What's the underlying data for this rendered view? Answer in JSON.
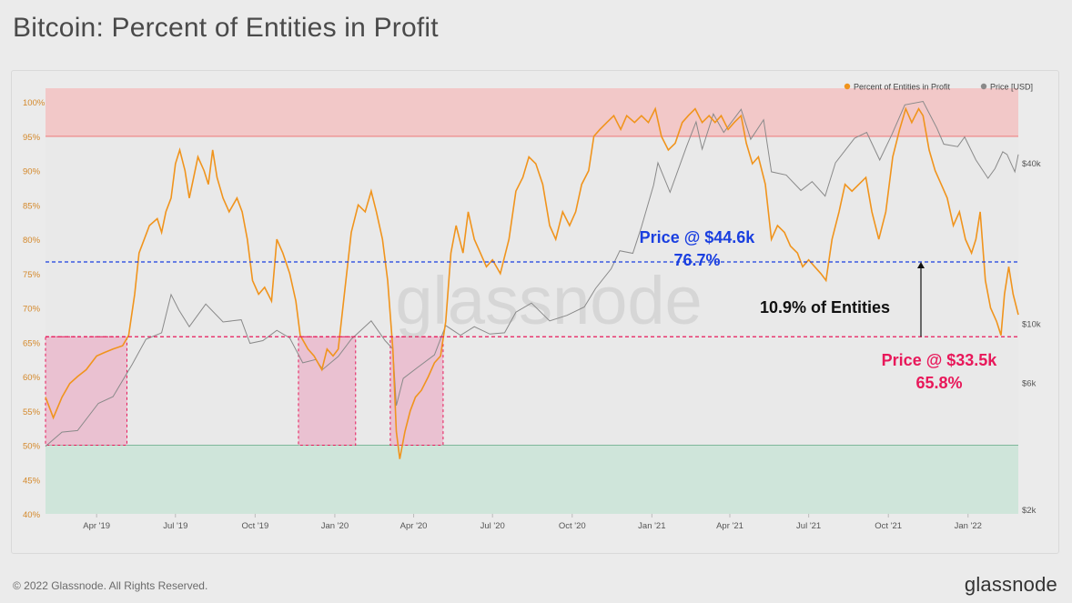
{
  "page": {
    "title": "Bitcoin: Percent of Entities in Profit",
    "copyright": "© 2022 Glassnode. All Rights Reserved.",
    "logo_text": "glassnode",
    "watermark": "glassnode"
  },
  "colors": {
    "profit_line": "#f0941d",
    "price_line": "#8a8a8a",
    "band_top": "#f2c8c8",
    "band_bottom": "#cfe5da",
    "blue": "#1a3fe0",
    "red": "#e8185a",
    "box_fill": "#eab3c8",
    "box_stroke": "#e8185a"
  },
  "chart_data": {
    "type": "line",
    "title": "Bitcoin: Percent of Entities in Profit",
    "left_axis": {
      "unit": "%",
      "range": [
        40,
        102
      ],
      "ticks": [
        "40%",
        "45%",
        "50%",
        "55%",
        "60%",
        "65%",
        "70%",
        "75%",
        "80%",
        "85%",
        "90%",
        "95%",
        "100%"
      ]
    },
    "right_axis": {
      "scale": "log",
      "label": "Price [USD]",
      "ticks": [
        {
          "label": "$2k",
          "value": 2000
        },
        {
          "label": "$6k",
          "value": 6000
        },
        {
          "label": "$10k",
          "value": 10000
        },
        {
          "label": "$40k",
          "value": 40000
        }
      ]
    },
    "x_range": [
      "2019-02-01",
      "2022-02-28"
    ],
    "x_ticks": [
      {
        "label": "Apr '19",
        "date": "2019-04-01"
      },
      {
        "label": "Jul '19",
        "date": "2019-07-01"
      },
      {
        "label": "Oct '19",
        "date": "2019-10-01"
      },
      {
        "label": "Jan '20",
        "date": "2020-01-01"
      },
      {
        "label": "Apr '20",
        "date": "2020-04-01"
      },
      {
        "label": "Jul '20",
        "date": "2020-07-01"
      },
      {
        "label": "Oct '20",
        "date": "2020-10-01"
      },
      {
        "label": "Jan '21",
        "date": "2021-01-01"
      },
      {
        "label": "Apr '21",
        "date": "2021-04-01"
      },
      {
        "label": "Jul '21",
        "date": "2021-07-01"
      },
      {
        "label": "Oct '21",
        "date": "2021-10-01"
      },
      {
        "label": "Jan '22",
        "date": "2022-01-01"
      }
    ],
    "bands": [
      {
        "name": "upper-band",
        "from": 95,
        "to": 102
      },
      {
        "name": "lower-band",
        "from": 40,
        "to": 50
      }
    ],
    "reference_lines": [
      {
        "name": "price-44.6k-line",
        "value": 76.7
      },
      {
        "name": "price-33.5k-line",
        "value": 65.8
      }
    ],
    "shaded_periods": [
      {
        "name": "period-2019-early",
        "start": "2019-02-01",
        "end": "2019-05-06",
        "top": 65.8
      },
      {
        "name": "period-2019-nov",
        "start": "2019-11-20",
        "end": "2020-01-25",
        "top": 65.8
      },
      {
        "name": "period-2020-mar",
        "start": "2020-03-05",
        "end": "2020-05-05",
        "top": 65.8
      }
    ],
    "legend": [
      {
        "label": "Percent of Entities in Profit"
      },
      {
        "label": "Price [USD]"
      }
    ],
    "annotations": {
      "blue_line1": "Price @ $44.6k",
      "blue_line2": "76.7%",
      "red_line1": "Price @ $33.5k",
      "red_line2": "65.8%",
      "gap_label": "10.9% of Entities"
    },
    "series": [
      {
        "name": "Percent of Entities in Profit",
        "points": [
          [
            "2019-02-01",
            57
          ],
          [
            "2019-02-10",
            54
          ],
          [
            "2019-02-20",
            57
          ],
          [
            "2019-03-01",
            59
          ],
          [
            "2019-03-10",
            60
          ],
          [
            "2019-03-20",
            61
          ],
          [
            "2019-04-01",
            63
          ],
          [
            "2019-04-10",
            63.5
          ],
          [
            "2019-04-20",
            64
          ],
          [
            "2019-05-01",
            64.5
          ],
          [
            "2019-05-08",
            66
          ],
          [
            "2019-05-15",
            72
          ],
          [
            "2019-05-20",
            78
          ],
          [
            "2019-06-01",
            82
          ],
          [
            "2019-06-10",
            83
          ],
          [
            "2019-06-15",
            81
          ],
          [
            "2019-06-20",
            84
          ],
          [
            "2019-06-26",
            86
          ],
          [
            "2019-07-01",
            91
          ],
          [
            "2019-07-06",
            93
          ],
          [
            "2019-07-12",
            90
          ],
          [
            "2019-07-17",
            86
          ],
          [
            "2019-07-22",
            89
          ],
          [
            "2019-07-27",
            92
          ],
          [
            "2019-08-03",
            90
          ],
          [
            "2019-08-08",
            88
          ],
          [
            "2019-08-13",
            93
          ],
          [
            "2019-08-18",
            89
          ],
          [
            "2019-08-25",
            86
          ],
          [
            "2019-09-01",
            84
          ],
          [
            "2019-09-10",
            86
          ],
          [
            "2019-09-16",
            84
          ],
          [
            "2019-09-22",
            80
          ],
          [
            "2019-09-28",
            74
          ],
          [
            "2019-10-05",
            72
          ],
          [
            "2019-10-12",
            73
          ],
          [
            "2019-10-20",
            71
          ],
          [
            "2019-10-26",
            80
          ],
          [
            "2019-11-02",
            78
          ],
          [
            "2019-11-10",
            75
          ],
          [
            "2019-11-17",
            71
          ],
          [
            "2019-11-22",
            66
          ],
          [
            "2019-12-01",
            64
          ],
          [
            "2019-12-08",
            63
          ],
          [
            "2019-12-17",
            61
          ],
          [
            "2019-12-23",
            64
          ],
          [
            "2019-12-30",
            63
          ],
          [
            "2020-01-05",
            64
          ],
          [
            "2020-01-12",
            72
          ],
          [
            "2020-01-20",
            81
          ],
          [
            "2020-01-28",
            85
          ],
          [
            "2020-02-05",
            84
          ],
          [
            "2020-02-12",
            87
          ],
          [
            "2020-02-18",
            84
          ],
          [
            "2020-02-25",
            80
          ],
          [
            "2020-03-02",
            74
          ],
          [
            "2020-03-08",
            64
          ],
          [
            "2020-03-12",
            52
          ],
          [
            "2020-03-16",
            48
          ],
          [
            "2020-03-22",
            52
          ],
          [
            "2020-03-28",
            55
          ],
          [
            "2020-04-03",
            57
          ],
          [
            "2020-04-10",
            58
          ],
          [
            "2020-04-18",
            60
          ],
          [
            "2020-04-25",
            62
          ],
          [
            "2020-05-02",
            63
          ],
          [
            "2020-05-08",
            68
          ],
          [
            "2020-05-14",
            78
          ],
          [
            "2020-05-20",
            82
          ],
          [
            "2020-05-28",
            78
          ],
          [
            "2020-06-03",
            84
          ],
          [
            "2020-06-10",
            80
          ],
          [
            "2020-06-17",
            78
          ],
          [
            "2020-06-24",
            76
          ],
          [
            "2020-07-01",
            77
          ],
          [
            "2020-07-10",
            75
          ],
          [
            "2020-07-20",
            80
          ],
          [
            "2020-07-28",
            87
          ],
          [
            "2020-08-05",
            89
          ],
          [
            "2020-08-12",
            92
          ],
          [
            "2020-08-20",
            91
          ],
          [
            "2020-08-28",
            88
          ],
          [
            "2020-09-05",
            82
          ],
          [
            "2020-09-12",
            80
          ],
          [
            "2020-09-20",
            84
          ],
          [
            "2020-09-28",
            82
          ],
          [
            "2020-10-05",
            84
          ],
          [
            "2020-10-12",
            88
          ],
          [
            "2020-10-20",
            90
          ],
          [
            "2020-10-26",
            95
          ],
          [
            "2020-11-02",
            96
          ],
          [
            "2020-11-10",
            97
          ],
          [
            "2020-11-18",
            98
          ],
          [
            "2020-11-26",
            96
          ],
          [
            "2020-12-03",
            98
          ],
          [
            "2020-12-12",
            97
          ],
          [
            "2020-12-20",
            98
          ],
          [
            "2020-12-28",
            97
          ],
          [
            "2021-01-05",
            99
          ],
          [
            "2021-01-12",
            95
          ],
          [
            "2021-01-20",
            93
          ],
          [
            "2021-01-28",
            94
          ],
          [
            "2021-02-05",
            97
          ],
          [
            "2021-02-12",
            98
          ],
          [
            "2021-02-20",
            99
          ],
          [
            "2021-02-28",
            97
          ],
          [
            "2021-03-08",
            98
          ],
          [
            "2021-03-15",
            97
          ],
          [
            "2021-03-22",
            98
          ],
          [
            "2021-03-30",
            96
          ],
          [
            "2021-04-06",
            97
          ],
          [
            "2021-04-14",
            98
          ],
          [
            "2021-04-20",
            94
          ],
          [
            "2021-04-27",
            91
          ],
          [
            "2021-05-04",
            92
          ],
          [
            "2021-05-12",
            88
          ],
          [
            "2021-05-19",
            80
          ],
          [
            "2021-05-26",
            82
          ],
          [
            "2021-06-03",
            81
          ],
          [
            "2021-06-10",
            79
          ],
          [
            "2021-06-18",
            78
          ],
          [
            "2021-06-24",
            76
          ],
          [
            "2021-07-01",
            77
          ],
          [
            "2021-07-08",
            76
          ],
          [
            "2021-07-15",
            75
          ],
          [
            "2021-07-21",
            74
          ],
          [
            "2021-07-28",
            80
          ],
          [
            "2021-08-05",
            84
          ],
          [
            "2021-08-12",
            88
          ],
          [
            "2021-08-20",
            87
          ],
          [
            "2021-08-28",
            88
          ],
          [
            "2021-09-05",
            89
          ],
          [
            "2021-09-12",
            84
          ],
          [
            "2021-09-20",
            80
          ],
          [
            "2021-09-28",
            84
          ],
          [
            "2021-10-06",
            92
          ],
          [
            "2021-10-14",
            96
          ],
          [
            "2021-10-21",
            99
          ],
          [
            "2021-10-28",
            97
          ],
          [
            "2021-11-05",
            99
          ],
          [
            "2021-11-10",
            98
          ],
          [
            "2021-11-17",
            93
          ],
          [
            "2021-11-24",
            90
          ],
          [
            "2021-12-01",
            88
          ],
          [
            "2021-12-08",
            86
          ],
          [
            "2021-12-15",
            82
          ],
          [
            "2021-12-22",
            84
          ],
          [
            "2021-12-29",
            80
          ],
          [
            "2022-01-05",
            78
          ],
          [
            "2022-01-10",
            80
          ],
          [
            "2022-01-15",
            84
          ],
          [
            "2022-01-21",
            74
          ],
          [
            "2022-01-27",
            70
          ],
          [
            "2022-02-03",
            68
          ],
          [
            "2022-02-08",
            66
          ],
          [
            "2022-02-12",
            72
          ],
          [
            "2022-02-17",
            76
          ],
          [
            "2022-02-22",
            72
          ],
          [
            "2022-02-28",
            69
          ]
        ]
      },
      {
        "name": "Price [USD]",
        "points": [
          [
            "2019-02-01",
            3450
          ],
          [
            "2019-02-20",
            3900
          ],
          [
            "2019-03-10",
            3950
          ],
          [
            "2019-04-03",
            5000
          ],
          [
            "2019-04-20",
            5300
          ],
          [
            "2019-05-12",
            7000
          ],
          [
            "2019-05-28",
            8700
          ],
          [
            "2019-06-15",
            9200
          ],
          [
            "2019-06-26",
            12800
          ],
          [
            "2019-07-05",
            11200
          ],
          [
            "2019-07-17",
            9700
          ],
          [
            "2019-08-05",
            11800
          ],
          [
            "2019-08-25",
            10100
          ],
          [
            "2019-09-15",
            10300
          ],
          [
            "2019-09-25",
            8400
          ],
          [
            "2019-10-10",
            8600
          ],
          [
            "2019-10-26",
            9400
          ],
          [
            "2019-11-10",
            8800
          ],
          [
            "2019-11-25",
            7100
          ],
          [
            "2019-12-10",
            7300
          ],
          [
            "2019-12-18",
            6700
          ],
          [
            "2020-01-05",
            7500
          ],
          [
            "2020-01-20",
            8700
          ],
          [
            "2020-02-12",
            10200
          ],
          [
            "2020-02-28",
            8600
          ],
          [
            "2020-03-08",
            8000
          ],
          [
            "2020-03-12",
            4900
          ],
          [
            "2020-03-20",
            6200
          ],
          [
            "2020-04-05",
            6800
          ],
          [
            "2020-04-25",
            7600
          ],
          [
            "2020-05-08",
            9800
          ],
          [
            "2020-05-25",
            9000
          ],
          [
            "2020-06-10",
            9700
          ],
          [
            "2020-06-28",
            9100
          ],
          [
            "2020-07-15",
            9200
          ],
          [
            "2020-07-28",
            11000
          ],
          [
            "2020-08-15",
            11900
          ],
          [
            "2020-09-05",
            10200
          ],
          [
            "2020-09-25",
            10700
          ],
          [
            "2020-10-15",
            11500
          ],
          [
            "2020-10-28",
            13500
          ],
          [
            "2020-11-15",
            16000
          ],
          [
            "2020-11-25",
            18700
          ],
          [
            "2020-12-10",
            18300
          ],
          [
            "2020-12-20",
            23000
          ],
          [
            "2021-01-03",
            33000
          ],
          [
            "2021-01-08",
            40000
          ],
          [
            "2021-01-22",
            31000
          ],
          [
            "2021-02-10",
            46000
          ],
          [
            "2021-02-21",
            57000
          ],
          [
            "2021-02-28",
            45000
          ],
          [
            "2021-03-13",
            61000
          ],
          [
            "2021-03-25",
            52000
          ],
          [
            "2021-04-14",
            63500
          ],
          [
            "2021-04-25",
            49000
          ],
          [
            "2021-05-10",
            58000
          ],
          [
            "2021-05-19",
            37000
          ],
          [
            "2021-06-05",
            36000
          ],
          [
            "2021-06-22",
            31500
          ],
          [
            "2021-07-05",
            34000
          ],
          [
            "2021-07-20",
            30000
          ],
          [
            "2021-08-01",
            40000
          ],
          [
            "2021-08-23",
            49500
          ],
          [
            "2021-09-06",
            52000
          ],
          [
            "2021-09-21",
            41000
          ],
          [
            "2021-10-05",
            51000
          ],
          [
            "2021-10-20",
            66000
          ],
          [
            "2021-11-10",
            68000
          ],
          [
            "2021-11-26",
            54000
          ],
          [
            "2021-12-04",
            47000
          ],
          [
            "2021-12-20",
            46000
          ],
          [
            "2021-12-28",
            50000
          ],
          [
            "2022-01-10",
            41000
          ],
          [
            "2022-01-24",
            35000
          ],
          [
            "2022-02-01",
            38000
          ],
          [
            "2022-02-10",
            44000
          ],
          [
            "2022-02-15",
            43000
          ],
          [
            "2022-02-24",
            37000
          ],
          [
            "2022-02-28",
            43000
          ]
        ]
      }
    ]
  }
}
